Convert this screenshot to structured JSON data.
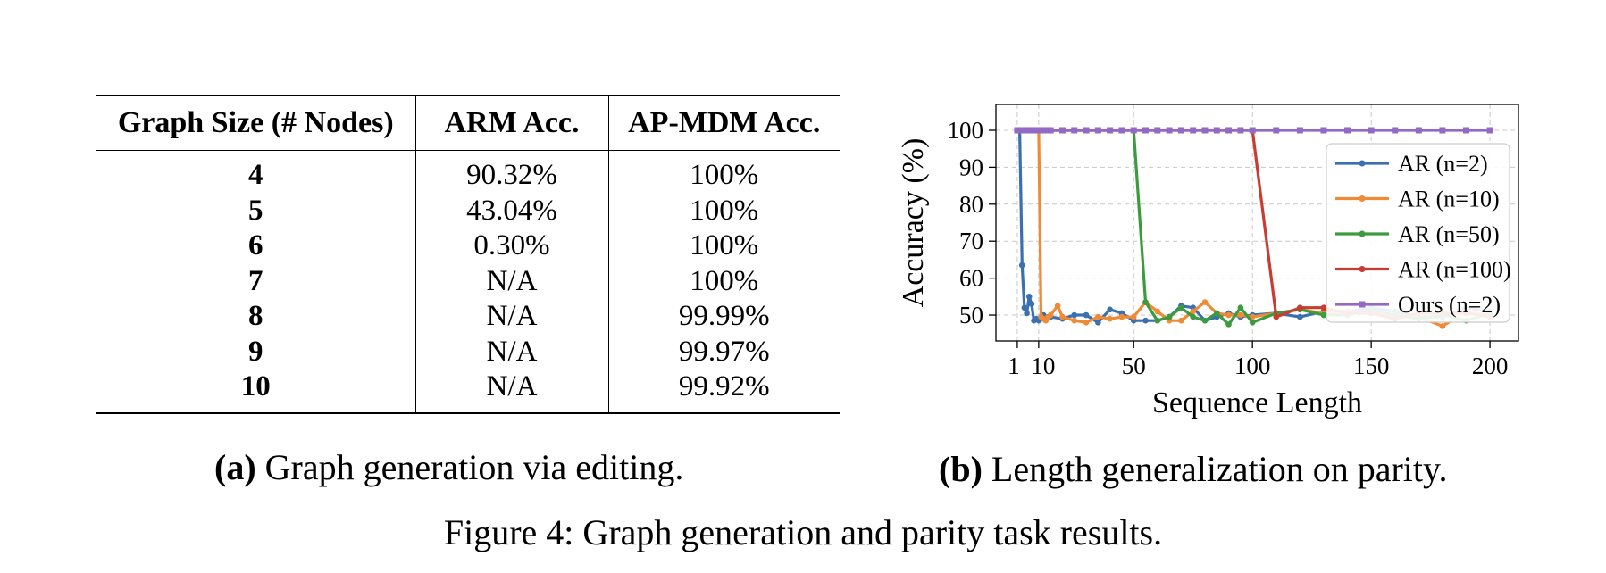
{
  "table": {
    "headers": [
      "Graph Size (# Nodes)",
      "ARM Acc.",
      "AP-MDM Acc."
    ],
    "rows": [
      [
        "4",
        "90.32%",
        "100%"
      ],
      [
        "5",
        "43.04%",
        "100%"
      ],
      [
        "6",
        "0.30%",
        "100%"
      ],
      [
        "7",
        "N/A",
        "100%"
      ],
      [
        "8",
        "N/A",
        "99.99%"
      ],
      [
        "9",
        "N/A",
        "99.97%"
      ],
      [
        "10",
        "N/A",
        "99.92%"
      ]
    ]
  },
  "captions": {
    "a_label": "(a)",
    "a_text": " Graph generation via editing.",
    "b_label": "(b)",
    "b_text": " Length generalization on parity.",
    "figure": "Figure 4: Graph generation and parity task results."
  },
  "chart_data": {
    "type": "line",
    "title": "",
    "xlabel": "Sequence Length",
    "ylabel": "Accuracy (%)",
    "xlim": [
      -8,
      212
    ],
    "ylim": [
      43,
      107
    ],
    "xticks": [
      1,
      10,
      50,
      100,
      150,
      200
    ],
    "xtick_labels": [
      "1",
      "10",
      "50",
      "100",
      "150",
      "200"
    ],
    "yticks": [
      50,
      60,
      70,
      80,
      90,
      100
    ],
    "ytick_labels": [
      "50",
      "60",
      "70",
      "80",
      "90",
      "100"
    ],
    "grid": true,
    "legend_position": "right",
    "series": [
      {
        "name": "AR (n=2)",
        "color": "#3a6fb0",
        "marker": "circle",
        "x": [
          1,
          2,
          3,
          4,
          5,
          6,
          7,
          8,
          9,
          10,
          11,
          12,
          15,
          20,
          25,
          30,
          35,
          40,
          45,
          50,
          55,
          60,
          65,
          70,
          75,
          80,
          85,
          90,
          95,
          100,
          110,
          120,
          130,
          140,
          150,
          160,
          170,
          180,
          190,
          200
        ],
        "y": [
          100,
          100,
          63.5,
          52,
          50.5,
          55,
          53,
          48.5,
          49,
          48.5,
          49,
          50,
          49.5,
          49,
          50,
          50,
          48,
          51.5,
          50.5,
          48.5,
          48.5,
          48.5,
          49.5,
          52.5,
          52,
          48.5,
          49.5,
          50.5,
          49.5,
          50,
          50.5,
          49.5,
          51,
          51,
          52,
          51,
          49.5,
          49.5,
          52,
          51
        ]
      },
      {
        "name": "AR (n=10)",
        "color": "#ef8a36",
        "marker": "circle",
        "x": [
          1,
          5,
          10,
          11,
          12,
          13,
          14,
          15,
          18,
          20,
          25,
          30,
          35,
          40,
          45,
          50,
          55,
          60,
          65,
          70,
          75,
          80,
          85,
          90,
          95,
          100,
          110,
          120,
          130,
          140,
          150,
          160,
          170,
          180,
          190,
          200
        ],
        "y": [
          100,
          100,
          100,
          49.5,
          49,
          48.5,
          49.5,
          50,
          52.5,
          49.5,
          48.5,
          48,
          49.5,
          49,
          49.5,
          49.5,
          53.5,
          51,
          48.5,
          48.5,
          51,
          53.5,
          50.5,
          50,
          50,
          49.5,
          50.5,
          51.5,
          50.5,
          51,
          50.5,
          50,
          49.5,
          47,
          51,
          50
        ]
      },
      {
        "name": "AR (n=50)",
        "color": "#3c9b3e",
        "marker": "circle",
        "x": [
          1,
          50,
          55,
          60,
          65,
          70,
          75,
          80,
          85,
          90,
          95,
          100,
          110,
          120,
          130,
          140,
          150,
          160,
          170,
          180,
          190,
          200
        ],
        "y": [
          100,
          100,
          53.5,
          48.5,
          49.5,
          52,
          49.5,
          48.5,
          50.5,
          47.5,
          52,
          48,
          50.5,
          51.5,
          50,
          50,
          51.5,
          50,
          49,
          50,
          48.5,
          50.5
        ]
      },
      {
        "name": "AR (n=100)",
        "color": "#c83c32",
        "marker": "circle",
        "x": [
          1,
          100,
          110,
          120,
          130,
          140,
          150,
          160,
          170,
          180,
          190,
          200
        ],
        "y": [
          100,
          100,
          49.5,
          52,
          52,
          50.5,
          50.5,
          49,
          50.5,
          50.5,
          50.5,
          49.5
        ]
      },
      {
        "name": "Ours (n=2)",
        "color": "#9369c4",
        "marker": "square",
        "x": [
          1,
          2,
          3,
          4,
          5,
          6,
          7,
          8,
          9,
          10,
          11,
          12,
          13,
          14,
          15,
          20,
          25,
          30,
          35,
          40,
          45,
          50,
          55,
          60,
          65,
          70,
          75,
          80,
          85,
          90,
          95,
          100,
          110,
          120,
          130,
          140,
          150,
          160,
          170,
          180,
          190,
          200
        ],
        "y": [
          100,
          100,
          100,
          100,
          100,
          100,
          100,
          100,
          100,
          100,
          100,
          100,
          100,
          100,
          100,
          100,
          100,
          100,
          100,
          100,
          100,
          100,
          100,
          100,
          100,
          100,
          100,
          100,
          100,
          100,
          100,
          100,
          100,
          100,
          100,
          100,
          100,
          100,
          100,
          100,
          100,
          100
        ]
      }
    ]
  }
}
